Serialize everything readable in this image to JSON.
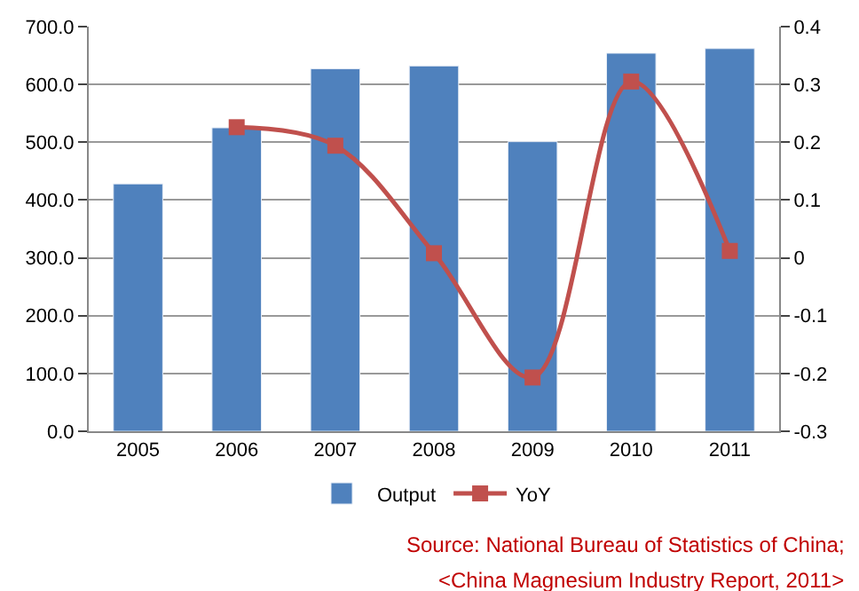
{
  "chart_data": {
    "type": "bar",
    "categories": [
      "2005",
      "2006",
      "2007",
      "2008",
      "2009",
      "2010",
      "2011"
    ],
    "series": [
      {
        "name": "Output",
        "color": "#4f81bd",
        "values": [
          428,
          525,
          627,
          632,
          501,
          654,
          662
        ]
      },
      {
        "name": "YoY",
        "type": "line",
        "axis": "y2",
        "color": "#c0504d",
        "marker": "square",
        "values": [
          null,
          0.226,
          0.194,
          0.008,
          -0.207,
          0.305,
          0.012
        ]
      }
    ],
    "ylim": [
      0,
      700
    ],
    "yticks": [
      {
        "value": 0,
        "label": "0.0"
      },
      {
        "value": 100,
        "label": "100.0"
      },
      {
        "value": 200,
        "label": "200.0"
      },
      {
        "value": 300,
        "label": "300.0"
      },
      {
        "value": 400,
        "label": "400.0"
      },
      {
        "value": 500,
        "label": "500.0"
      },
      {
        "value": 600,
        "label": "600.0"
      },
      {
        "value": 700,
        "label": "700.0"
      }
    ],
    "y2lim": [
      -0.3,
      0.4
    ],
    "y2ticks": [
      -0.3,
      -0.2,
      -0.1,
      0,
      0.1,
      0.2,
      0.3,
      0.4
    ],
    "grid": "y",
    "legend": "bottom",
    "annotations": [
      "Source: National Bureau of Statistics of China;",
      "<China Magnesium Industry Report, 2011>"
    ]
  }
}
